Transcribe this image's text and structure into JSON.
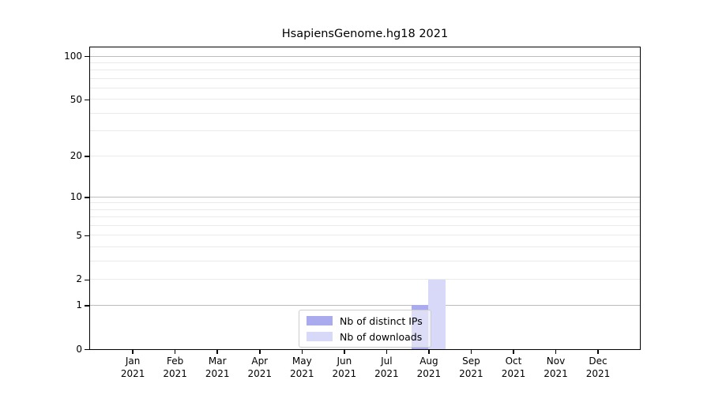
{
  "chart_data": {
    "type": "bar",
    "title": "HsapiensGenome.hg18 2021",
    "categories": [
      "Jan",
      "Feb",
      "Mar",
      "Apr",
      "May",
      "Jun",
      "Jul",
      "Aug",
      "Sep",
      "Oct",
      "Nov",
      "Dec"
    ],
    "category_year": "2021",
    "series": [
      {
        "name": "Nb of distinct IPs",
        "color": "#aaaaee",
        "values": [
          0,
          0,
          0,
          0,
          0,
          0,
          0,
          1,
          0,
          0,
          0,
          0
        ]
      },
      {
        "name": "Nb of downloads",
        "color": "#d8d8f8",
        "values": [
          0,
          0,
          0,
          0,
          0,
          0,
          0,
          2,
          0,
          0,
          0,
          0
        ]
      }
    ],
    "xlabel": "",
    "ylabel": "",
    "yscale": "log1p",
    "ylim": [
      0,
      100
    ],
    "yticks": [
      0,
      1,
      2,
      5,
      10,
      20,
      50,
      100
    ],
    "grid": {
      "major_lines": [
        1,
        10,
        100
      ],
      "minor_lines": [
        2,
        3,
        4,
        5,
        6,
        7,
        8,
        9,
        20,
        30,
        40,
        50,
        60,
        70,
        80,
        90
      ],
      "major_color": "#bcbcbc",
      "minor_color": "#eaeaea"
    },
    "legend_position": "lower center",
    "bar_values_note": "Aug 2021: distinct IPs = 1, downloads = 2; all other months 0"
  }
}
